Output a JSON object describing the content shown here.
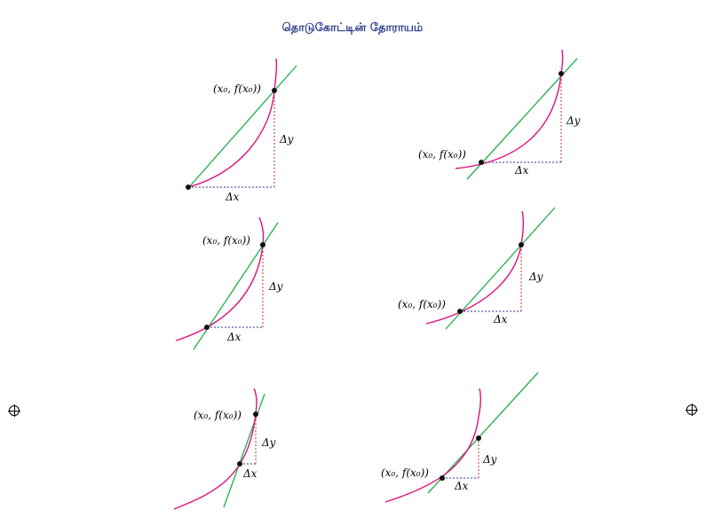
{
  "title": "தொடுகோட்டின் தோராயம்",
  "colors": {
    "title": "#2a3d8f",
    "curve": "#e0117f",
    "tangent": "#1fae4b",
    "dx_line": "#2b2f8f",
    "dy_line": "#c0392b",
    "point": "#111111"
  },
  "labels": {
    "point": "(x₀, f(x₀))",
    "dx": "Δx",
    "dy": "Δy"
  },
  "panels": [
    {
      "id": "panel-1",
      "step": 1
    },
    {
      "id": "panel-2",
      "step": 2
    },
    {
      "id": "panel-3",
      "step": 3
    },
    {
      "id": "panel-4",
      "step": 4
    },
    {
      "id": "panel-5",
      "step": 5
    },
    {
      "id": "panel-6",
      "step": 6
    }
  ],
  "marks": [
    "registration-mark-left",
    "registration-mark-right"
  ]
}
